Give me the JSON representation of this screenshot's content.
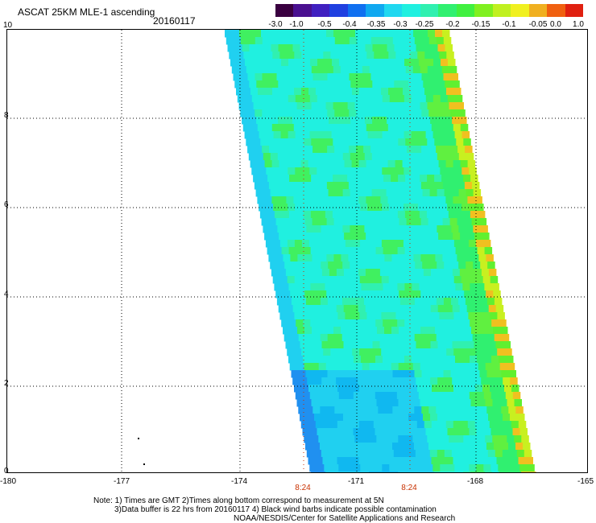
{
  "header": {
    "title": "ASCAT 25KM MLE-1 ascending",
    "date": "20160117"
  },
  "colorbar": {
    "colors": [
      "#3a0040",
      "#4a1090",
      "#4020c0",
      "#2040e0",
      "#1070f0",
      "#10a8f0",
      "#20d8f0",
      "#20f0e0",
      "#30f0b0",
      "#30f070",
      "#40f040",
      "#80f020",
      "#c0f020",
      "#f0f020",
      "#f0b020",
      "#f06010",
      "#e02010"
    ],
    "labels": [
      "-3.0",
      "-1.0",
      "-0.5",
      "-0.4",
      "-0.35",
      "-0.3",
      "-0.25",
      "-0.2",
      "-0.15",
      "-0.1",
      "-0.05",
      "0.0",
      "1.0"
    ]
  },
  "axes": {
    "x_labels": [
      "-180",
      "-177",
      "-174",
      "-171",
      "-168",
      "-165"
    ],
    "y_labels": [
      "0",
      "2",
      "4",
      "6",
      "8",
      "10"
    ]
  },
  "time_labels": [
    "8:24",
    "8:24"
  ],
  "notes": [
    "Note: 1) Times are GMT 2)Times along bottom correspond to measurement at 5N",
    "3)Data buffer is 22 hrs from 20160117 4) Black wind barbs indicate possible contamination",
    "NOAA/NESDIS/Center for Satellite Applications and Research"
  ]
}
